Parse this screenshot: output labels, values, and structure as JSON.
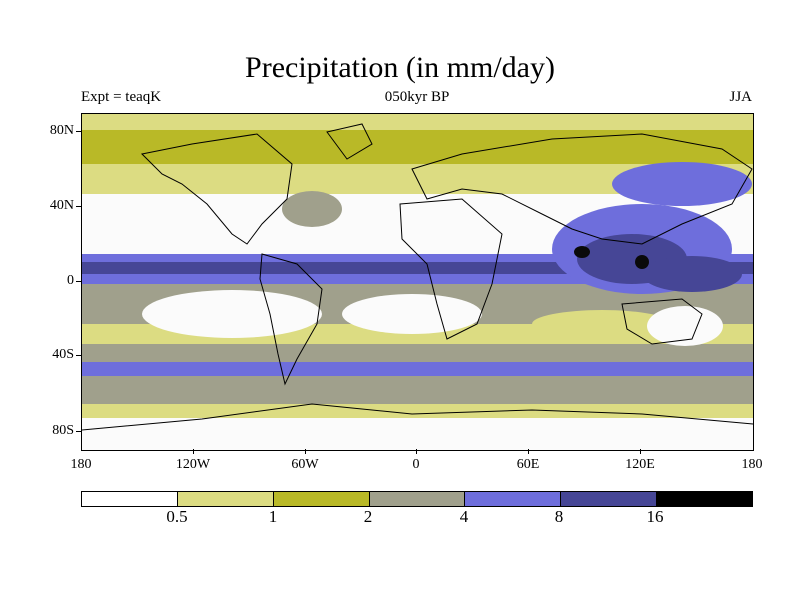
{
  "title": "Precipitation (in mm/day)",
  "subtitle_left": "Expt = teaqK",
  "subtitle_center": "050kyr BP",
  "subtitle_right": "JJA",
  "lat_ticks": [
    "80N",
    "40N",
    "0",
    "40S",
    "80S"
  ],
  "lon_ticks": [
    "180",
    "120W",
    "60W",
    "0",
    "60E",
    "120E",
    "180"
  ],
  "legend": {
    "labels": [
      "0.5",
      "1",
      "2",
      "4",
      "8",
      "16"
    ],
    "colors": [
      "#ffffff",
      "#dcdc82",
      "#b9b927",
      "#a0a08c",
      "#6e6edc",
      "#464696",
      "#000000"
    ]
  },
  "colors": {
    "dry": "#fbfbfb",
    "light": "#dcdc82",
    "olive": "#b9b927",
    "gray": "#a0a08c",
    "blue": "#6e6edc",
    "dark": "#464696",
    "black": "#0a0a0a",
    "coast": "#000000"
  }
}
